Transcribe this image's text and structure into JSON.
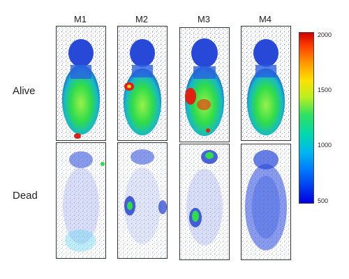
{
  "columns": [
    "M1",
    "M2",
    "M3",
    "M4"
  ],
  "rows": [
    "Alive",
    "Dead"
  ],
  "colorbar": {
    "ticks": [
      "2000",
      "1500",
      "1000",
      "500"
    ],
    "range": [
      500,
      2000
    ]
  },
  "colors": {
    "low": "#1e3cd0",
    "mid": "#2fdc4a",
    "high": "#e02010",
    "hot": "#ffd020",
    "cyan": "#00c0e0"
  }
}
